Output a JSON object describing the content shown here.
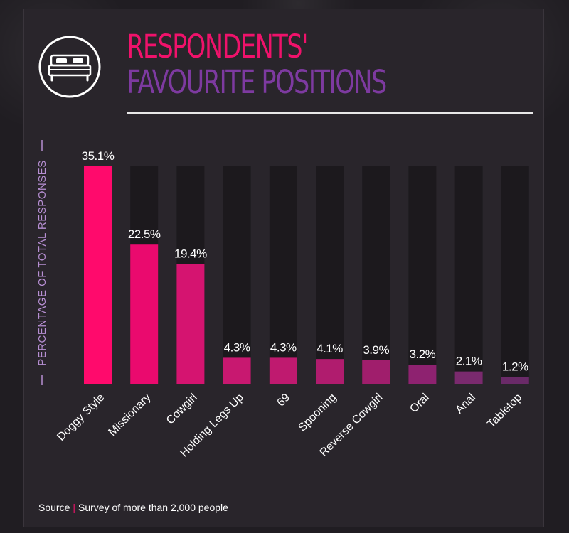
{
  "title_line1": "RESPONDENTS'",
  "title_line2": "FAVOURITE POSITIONS",
  "source_label": "Source",
  "source_text": "Survey of more than 2,000 people",
  "colors": {
    "title_primary": "#f0126b",
    "title_secondary": "#7d3aa0",
    "axis_label": "#b78fd3",
    "track": "#1c191d"
  },
  "icons": {
    "header": "bed-icon"
  },
  "chart_data": {
    "type": "bar",
    "ylabel": "PERCENTAGE OF TOTAL RESPONSES",
    "ylim": [
      0,
      35.1
    ],
    "grid": false,
    "categories": [
      "Doggy Style",
      "Missionary",
      "Cowgirl",
      "Holding Legs Up",
      "69",
      "Spooning",
      "Reverse Cowgirl",
      "Oral",
      "Anal",
      "Tabletop"
    ],
    "values": [
      35.1,
      22.5,
      19.4,
      4.3,
      4.3,
      4.1,
      3.9,
      3.2,
      2.1,
      1.2
    ],
    "value_labels": [
      "35.1%",
      "22.5%",
      "19.4%",
      "4.3%",
      "4.3%",
      "4.1%",
      "3.9%",
      "3.2%",
      "2.1%",
      "1.2%"
    ],
    "bar_colors": [
      "#ff0a6c",
      "#ea0a6e",
      "#d51470",
      "#c81870",
      "#bf1a6f",
      "#b01c6e",
      "#a01e6c",
      "#8e2270",
      "#7a2a6e",
      "#6a2a68"
    ]
  }
}
